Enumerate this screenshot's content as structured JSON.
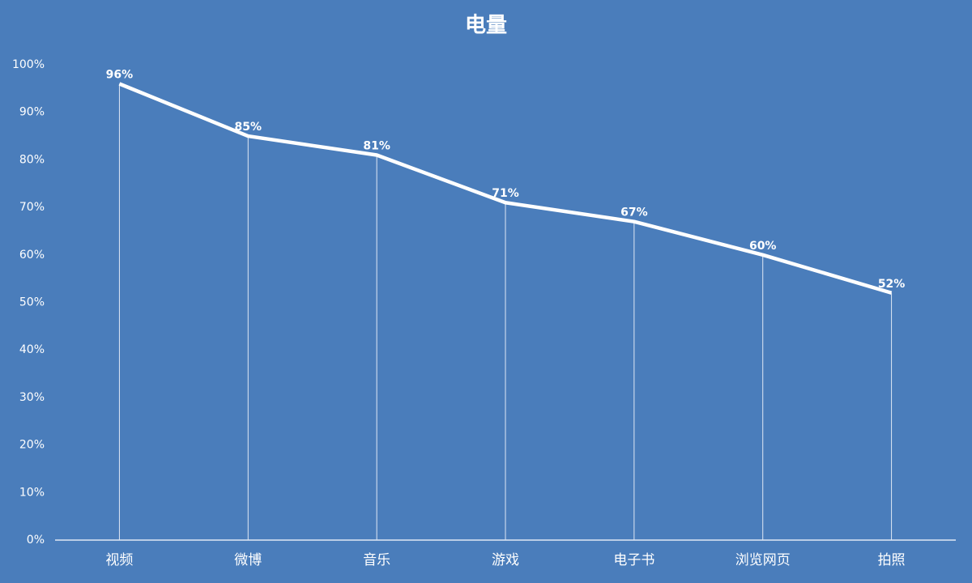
{
  "chart_data": {
    "type": "line",
    "title": "电量",
    "categories": [
      "视频",
      "微博",
      "音乐",
      "游戏",
      "电子书",
      "浏览网页",
      "拍照"
    ],
    "values": [
      96,
      85,
      81,
      71,
      67,
      60,
      52
    ],
    "value_labels": [
      "96%",
      "85%",
      "81%",
      "71%",
      "67%",
      "60%",
      "52%"
    ],
    "color": "#ffffff",
    "drop_lines": true,
    "ylim": [
      0,
      100
    ],
    "yticks": [
      {
        "value": 0,
        "label": "0%"
      },
      {
        "value": 10,
        "label": "10%"
      },
      {
        "value": 20,
        "label": "20%"
      },
      {
        "value": 30,
        "label": "30%"
      },
      {
        "value": 40,
        "label": "40%"
      },
      {
        "value": 50,
        "label": "50%"
      },
      {
        "value": 60,
        "label": "60%"
      },
      {
        "value": 70,
        "label": "70%"
      },
      {
        "value": 80,
        "label": "80%"
      },
      {
        "value": 90,
        "label": "90%"
      },
      {
        "value": 100,
        "label": "100%"
      }
    ]
  }
}
